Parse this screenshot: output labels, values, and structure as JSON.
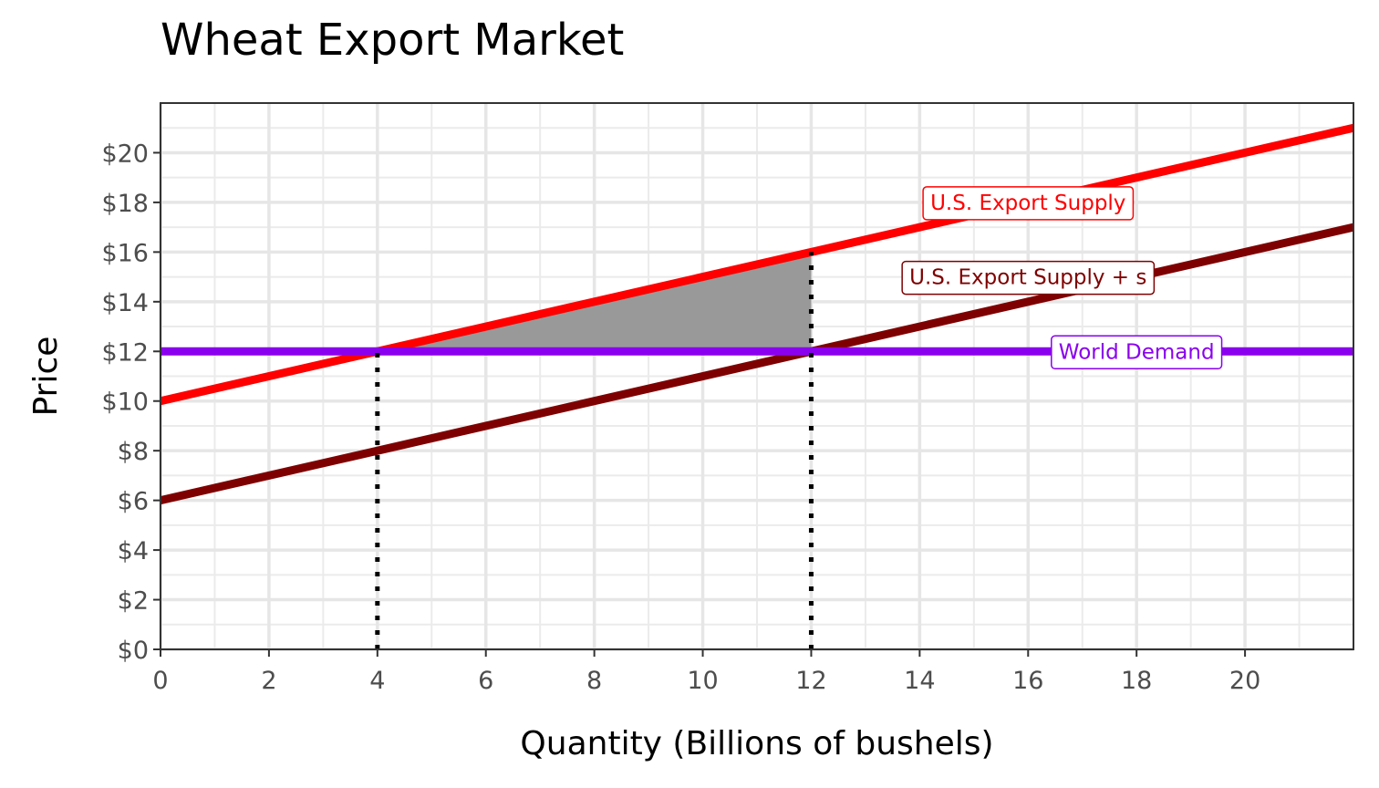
{
  "chart_data": {
    "type": "line",
    "title": "Wheat Export Market",
    "xlabel": "Quantity (Billions of bushels)",
    "ylabel": "Price",
    "xlim": [
      0,
      22
    ],
    "ylim": [
      0,
      22
    ],
    "x_ticks": [
      0,
      2,
      4,
      6,
      8,
      10,
      12,
      14,
      16,
      18,
      20
    ],
    "y_ticks": [
      0,
      2,
      4,
      6,
      8,
      10,
      12,
      14,
      16,
      18,
      20
    ],
    "y_tick_labels": [
      "$0",
      "$2",
      "$4",
      "$6",
      "$8",
      "$10",
      "$12",
      "$14",
      "$16",
      "$18",
      "$20"
    ],
    "grid": true,
    "series": [
      {
        "name": "U.S. Export Supply",
        "color": "#ff0000",
        "x": [
          0,
          22
        ],
        "y": [
          10,
          21
        ]
      },
      {
        "name": "U.S. Export Supply + s",
        "color": "#7f0000",
        "x": [
          0,
          22
        ],
        "y": [
          6,
          17
        ]
      },
      {
        "name": "World Demand",
        "color": "#8a00ee",
        "x": [
          0,
          22
        ],
        "y": [
          12,
          12
        ]
      }
    ],
    "shaded_region": {
      "color": "#999999",
      "points": [
        [
          4,
          12
        ],
        [
          12,
          16
        ],
        [
          12,
          12
        ]
      ]
    },
    "reference_lines": [
      {
        "x": 4,
        "y_from": 0,
        "y_to": 12,
        "style": "dotted"
      },
      {
        "x": 12,
        "y_from": 0,
        "y_to": 16,
        "style": "dotted"
      }
    ],
    "annotations": [
      {
        "text": "U.S. Export Supply",
        "x": 16,
        "y": 18,
        "color": "#ff0000"
      },
      {
        "text": "U.S. Export Supply + s",
        "x": 16,
        "y": 15,
        "color": "#7f0000"
      },
      {
        "text": "World Demand",
        "x": 18,
        "y": 12,
        "color": "#8a00ee"
      }
    ]
  }
}
